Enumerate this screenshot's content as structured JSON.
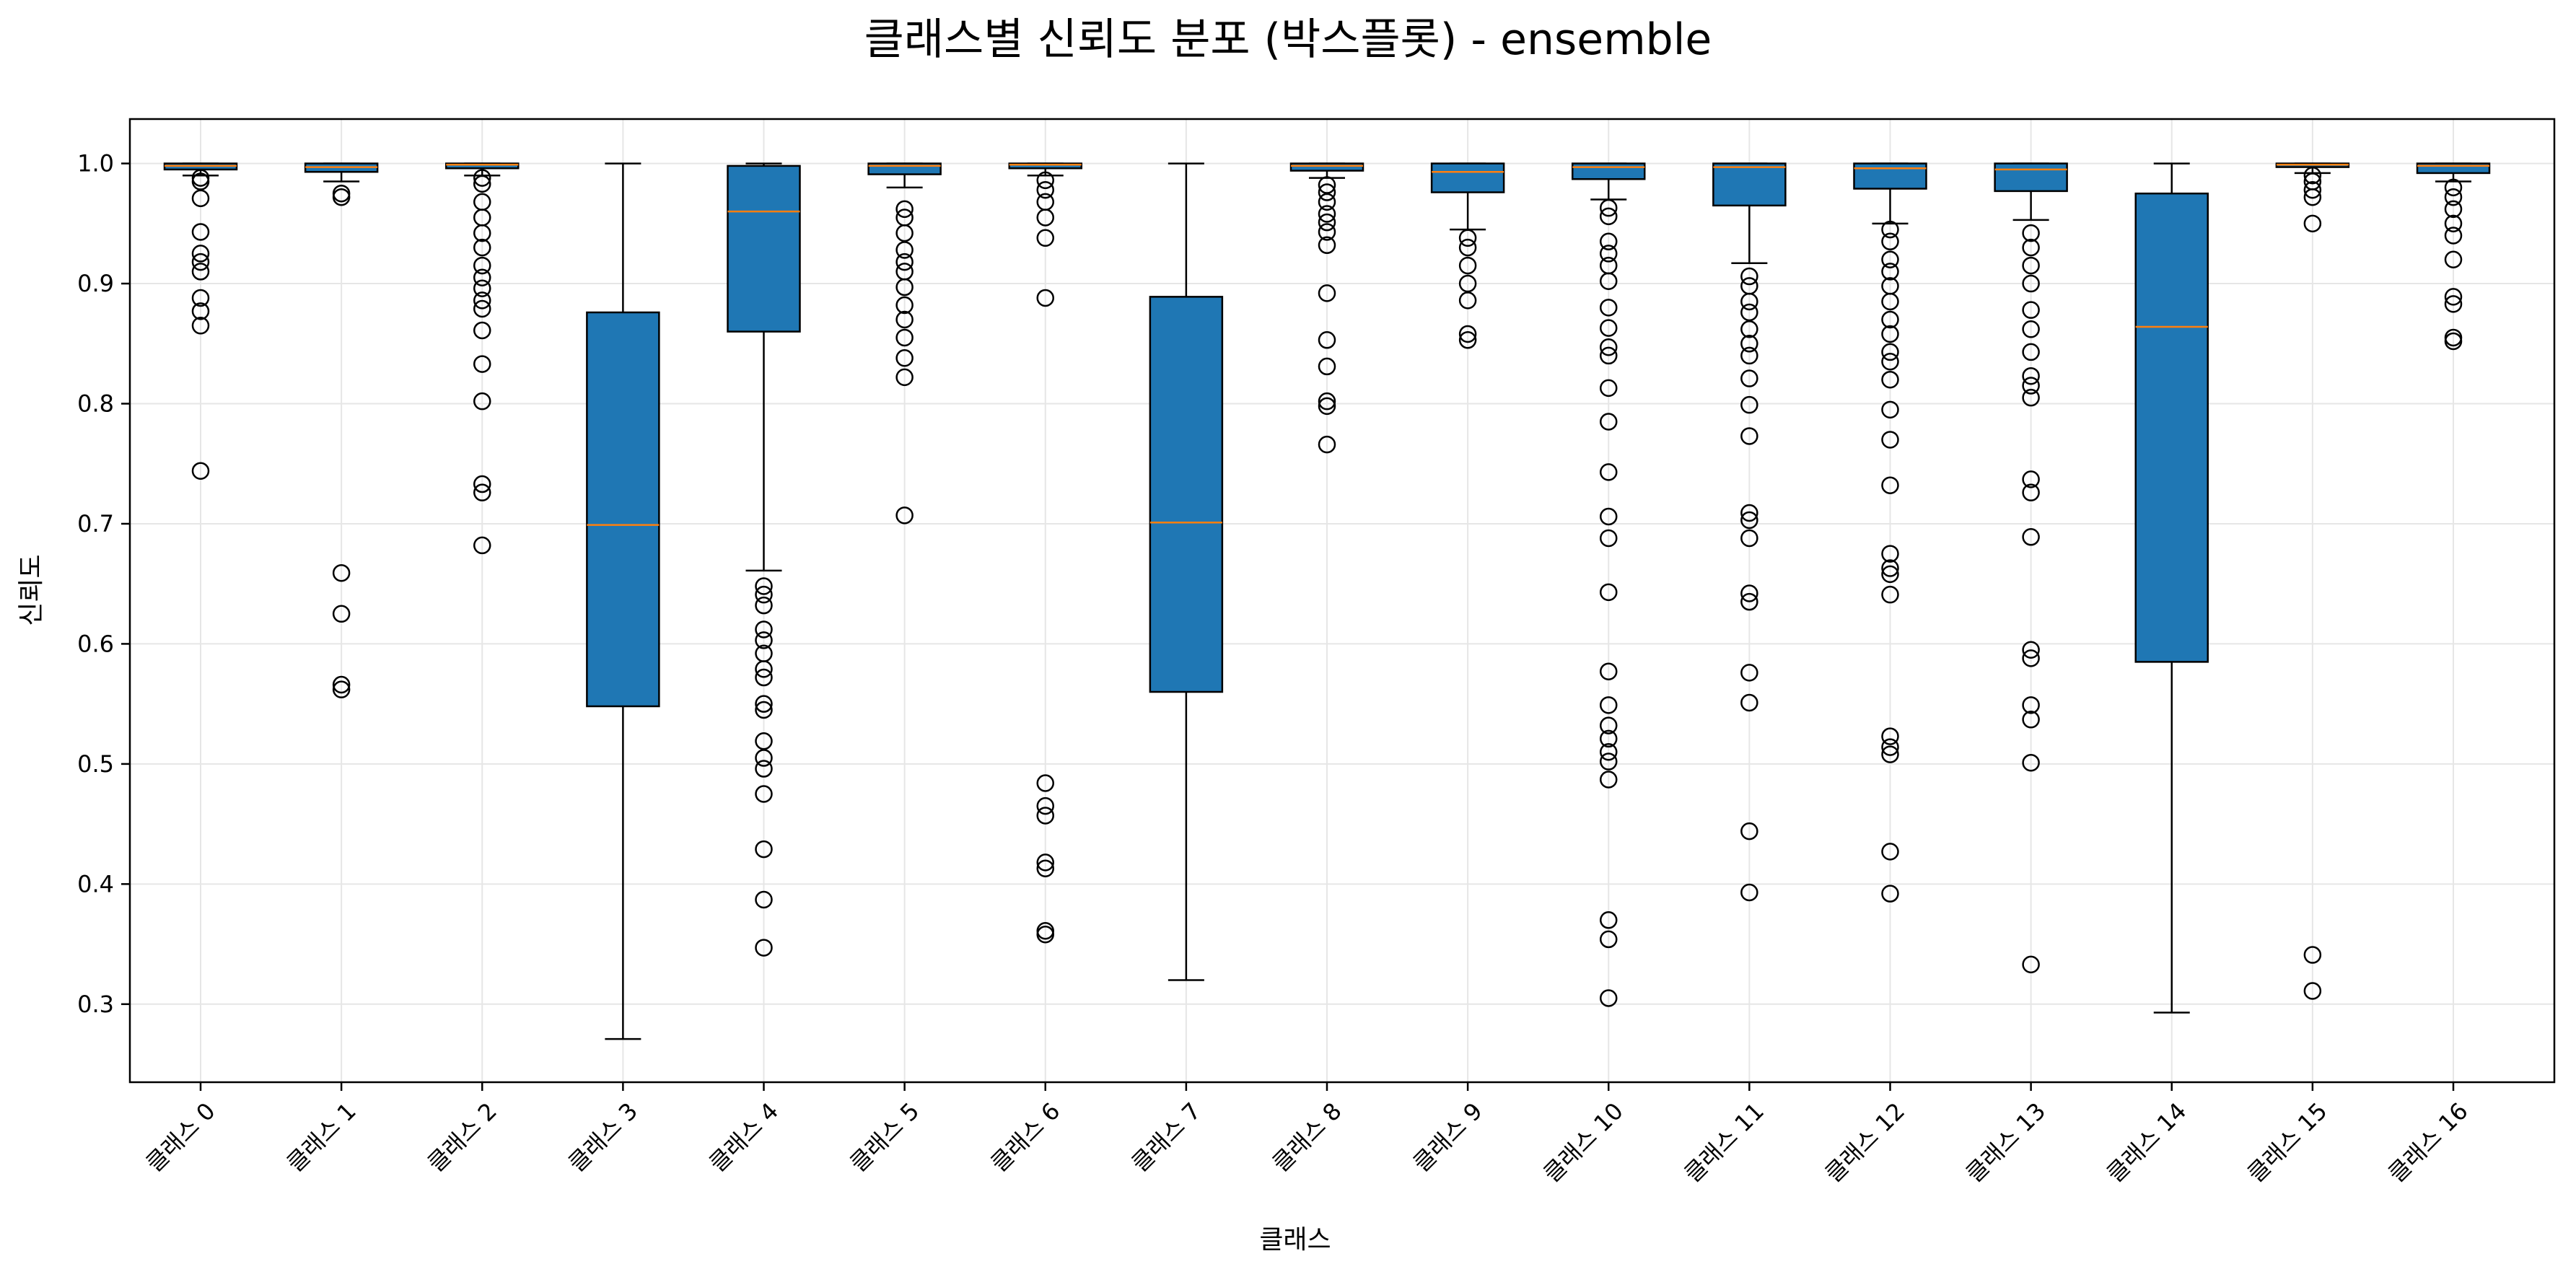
{
  "chart_data": {
    "type": "box",
    "title": "클래스별 신뢰도 분포 (박스플롯) - ensemble",
    "xlabel": "클래스",
    "ylabel": "신뢰도",
    "ylim": [
      0.235,
      1.037
    ],
    "yticks": [
      0.3,
      0.4,
      0.5,
      0.6,
      0.7,
      0.8,
      0.9,
      1.0
    ],
    "ytick_labels": [
      "0.3",
      "0.4",
      "0.5",
      "0.6",
      "0.7",
      "0.8",
      "0.9",
      "1.0"
    ],
    "grid": true,
    "colors": {
      "box": "#1f77b4",
      "median": "#ff7f0e",
      "grid": "#e6e6e6",
      "frame": "#000000"
    },
    "categories": [
      "클래스 0",
      "클래스 1",
      "클래스 2",
      "클래스 3",
      "클래스 4",
      "클래스 5",
      "클래스 6",
      "클래스 7",
      "클래스 8",
      "클래스 9",
      "클래스 10",
      "클래스 11",
      "클래스 12",
      "클래스 13",
      "클래스 14",
      "클래스 15",
      "클래스 16"
    ],
    "boxes": [
      {
        "q1": 0.995,
        "median": 0.998,
        "q3": 1.0,
        "whisker_low": 0.99,
        "whisker_high": 1.0,
        "outliers": [
          0.988,
          0.985,
          0.971,
          0.943,
          0.925,
          0.918,
          0.91,
          0.888,
          0.877,
          0.865,
          0.744
        ]
      },
      {
        "q1": 0.993,
        "median": 0.997,
        "q3": 1.0,
        "whisker_low": 0.985,
        "whisker_high": 1.0,
        "outliers": [
          0.975,
          0.972,
          0.659,
          0.625,
          0.566,
          0.562
        ]
      },
      {
        "q1": 0.996,
        "median": 0.999,
        "q3": 1.0,
        "whisker_low": 0.99,
        "whisker_high": 1.0,
        "outliers": [
          0.988,
          0.983,
          0.968,
          0.955,
          0.942,
          0.93,
          0.915,
          0.905,
          0.896,
          0.886,
          0.879,
          0.861,
          0.833,
          0.802,
          0.733,
          0.726,
          0.682
        ]
      },
      {
        "q1": 0.548,
        "median": 0.699,
        "q3": 0.876,
        "whisker_low": 0.271,
        "whisker_high": 1.0,
        "outliers": []
      },
      {
        "q1": 0.86,
        "median": 0.96,
        "q3": 0.998,
        "whisker_low": 0.661,
        "whisker_high": 1.0,
        "outliers": [
          0.648,
          0.641,
          0.632,
          0.612,
          0.603,
          0.592,
          0.579,
          0.572,
          0.55,
          0.545,
          0.519,
          0.505,
          0.496,
          0.475,
          0.429,
          0.387,
          0.347
        ]
      },
      {
        "q1": 0.991,
        "median": 0.998,
        "q3": 1.0,
        "whisker_low": 0.98,
        "whisker_high": 1.0,
        "outliers": [
          0.962,
          0.955,
          0.942,
          0.928,
          0.918,
          0.91,
          0.897,
          0.882,
          0.87,
          0.855,
          0.838,
          0.822,
          0.707
        ]
      },
      {
        "q1": 0.996,
        "median": 0.999,
        "q3": 1.0,
        "whisker_low": 0.99,
        "whisker_high": 1.0,
        "outliers": [
          0.986,
          0.978,
          0.968,
          0.955,
          0.938,
          0.888,
          0.484,
          0.465,
          0.457,
          0.418,
          0.413,
          0.361,
          0.358
        ]
      },
      {
        "q1": 0.56,
        "median": 0.701,
        "q3": 0.889,
        "whisker_low": 0.32,
        "whisker_high": 1.0,
        "outliers": []
      },
      {
        "q1": 0.994,
        "median": 0.998,
        "q3": 1.0,
        "whisker_low": 0.988,
        "whisker_high": 1.0,
        "outliers": [
          0.982,
          0.976,
          0.968,
          0.958,
          0.951,
          0.943,
          0.932,
          0.892,
          0.853,
          0.831,
          0.802,
          0.798,
          0.766
        ]
      },
      {
        "q1": 0.976,
        "median": 0.993,
        "q3": 1.0,
        "whisker_low": 0.945,
        "whisker_high": 1.0,
        "outliers": [
          0.938,
          0.93,
          0.915,
          0.9,
          0.886,
          0.858,
          0.853
        ]
      },
      {
        "q1": 0.987,
        "median": 0.997,
        "q3": 1.0,
        "whisker_low": 0.97,
        "whisker_high": 1.0,
        "outliers": [
          0.963,
          0.956,
          0.935,
          0.925,
          0.915,
          0.902,
          0.88,
          0.863,
          0.847,
          0.84,
          0.813,
          0.785,
          0.743,
          0.706,
          0.688,
          0.643,
          0.577,
          0.549,
          0.532,
          0.521,
          0.51,
          0.502,
          0.487,
          0.37,
          0.354,
          0.305
        ]
      },
      {
        "q1": 0.965,
        "median": 0.997,
        "q3": 1.0,
        "whisker_low": 0.917,
        "whisker_high": 1.0,
        "outliers": [
          0.906,
          0.898,
          0.885,
          0.876,
          0.862,
          0.85,
          0.84,
          0.821,
          0.799,
          0.773,
          0.709,
          0.703,
          0.688,
          0.642,
          0.635,
          0.576,
          0.551,
          0.444,
          0.393
        ]
      },
      {
        "q1": 0.979,
        "median": 0.996,
        "q3": 1.0,
        "whisker_low": 0.95,
        "whisker_high": 1.0,
        "outliers": [
          0.945,
          0.935,
          0.92,
          0.91,
          0.898,
          0.885,
          0.87,
          0.858,
          0.843,
          0.835,
          0.82,
          0.795,
          0.77,
          0.732,
          0.675,
          0.663,
          0.658,
          0.641,
          0.523,
          0.514,
          0.508,
          0.427,
          0.392
        ]
      },
      {
        "q1": 0.977,
        "median": 0.995,
        "q3": 1.0,
        "whisker_low": 0.953,
        "whisker_high": 1.0,
        "outliers": [
          0.942,
          0.93,
          0.915,
          0.9,
          0.878,
          0.862,
          0.843,
          0.823,
          0.815,
          0.805,
          0.737,
          0.726,
          0.689,
          0.595,
          0.588,
          0.549,
          0.537,
          0.501,
          0.333
        ]
      },
      {
        "q1": 0.585,
        "median": 0.864,
        "q3": 0.975,
        "whisker_low": 0.293,
        "whisker_high": 1.0,
        "outliers": []
      },
      {
        "q1": 0.997,
        "median": 0.999,
        "q3": 1.0,
        "whisker_low": 0.992,
        "whisker_high": 1.0,
        "outliers": [
          0.99,
          0.985,
          0.978,
          0.972,
          0.95,
          0.341,
          0.311
        ]
      },
      {
        "q1": 0.992,
        "median": 0.998,
        "q3": 1.0,
        "whisker_low": 0.985,
        "whisker_high": 1.0,
        "outliers": [
          0.98,
          0.972,
          0.962,
          0.95,
          0.94,
          0.92,
          0.889,
          0.883,
          0.855,
          0.852
        ]
      }
    ]
  }
}
